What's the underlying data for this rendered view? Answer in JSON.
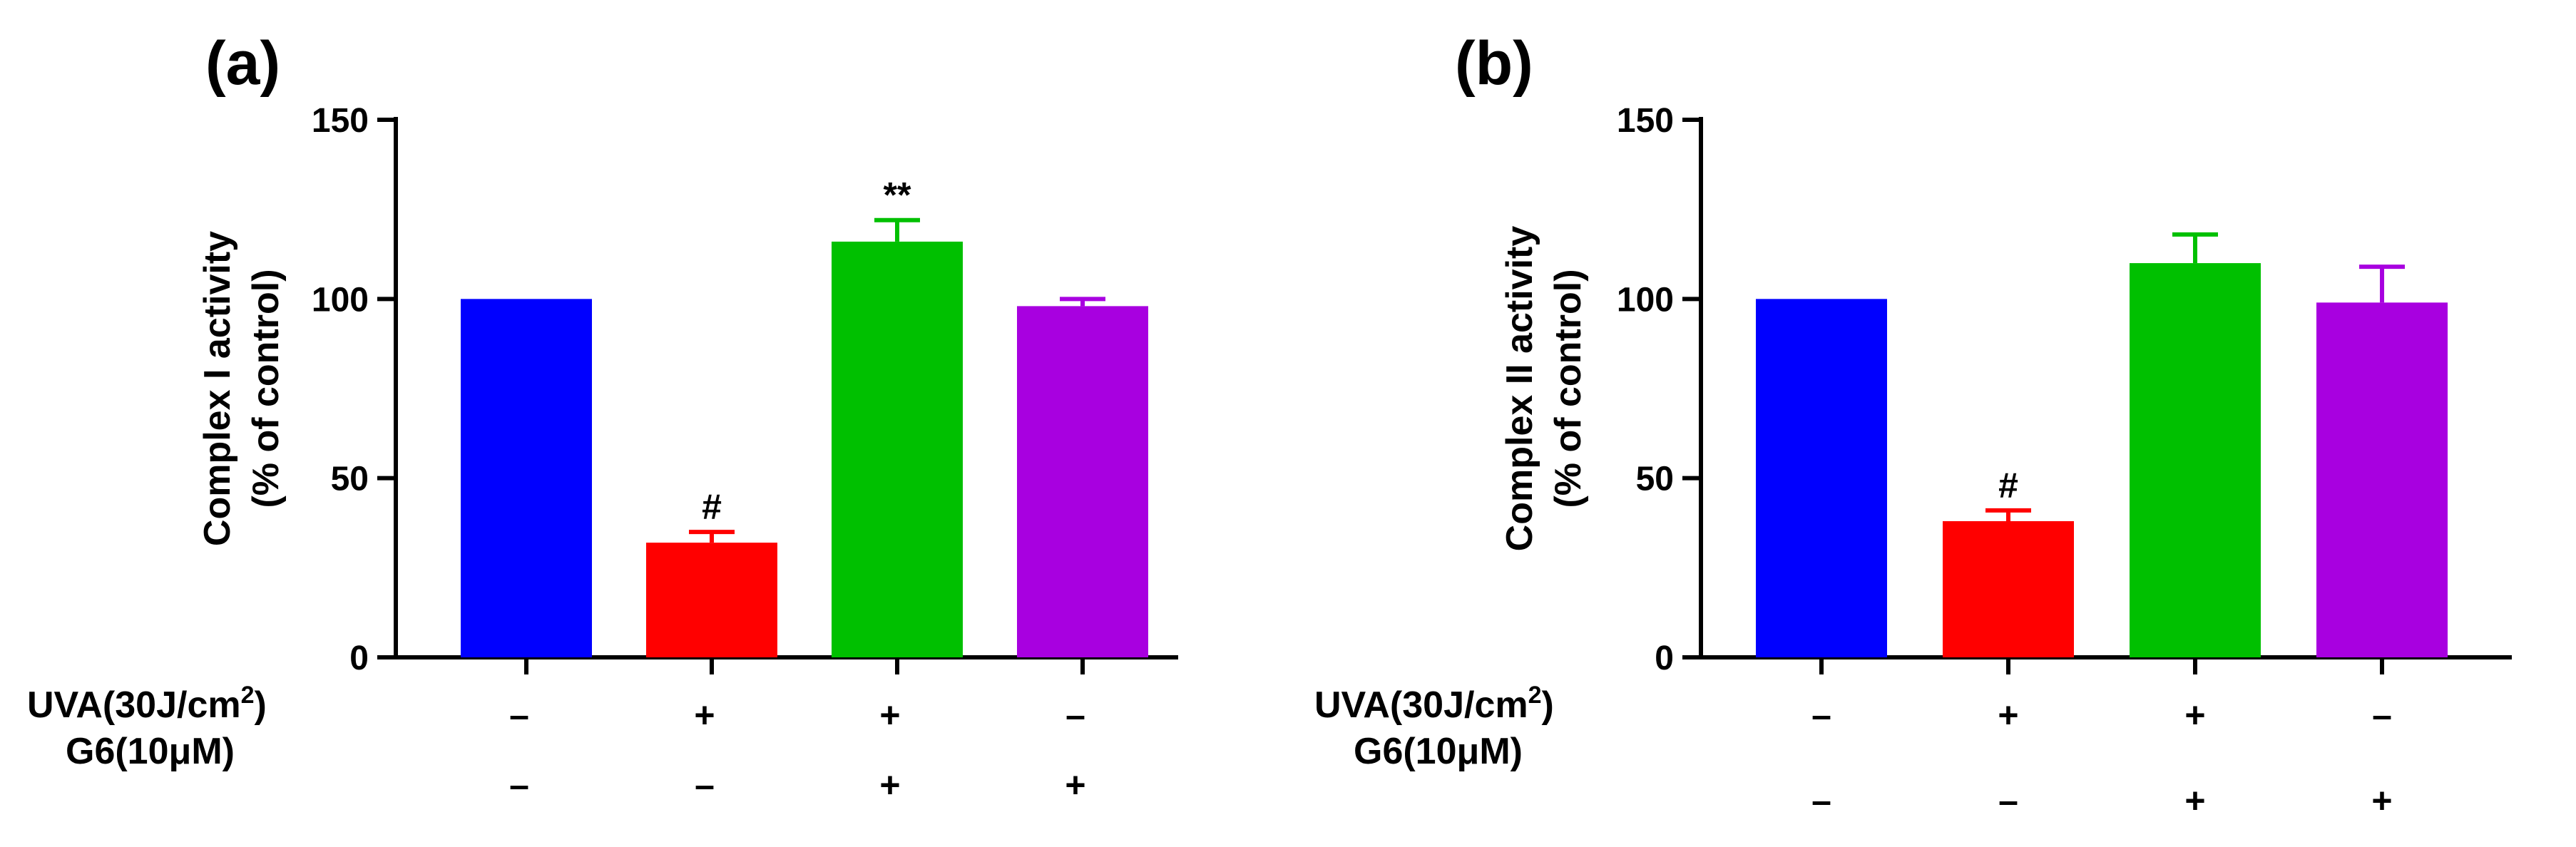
{
  "chart_data": [
    {
      "panel_label": "(a)",
      "type": "bar",
      "ylabel_line1": "Complex I activity",
      "ylabel_line2": "(% of control)",
      "ylim": [
        0,
        150
      ],
      "yticks": [
        "0",
        "50",
        "100",
        "150"
      ],
      "bars": [
        {
          "value": 100,
          "error": 0,
          "color": "#0000ff",
          "annotation": ""
        },
        {
          "value": 32,
          "error": 3,
          "color": "#ff0000",
          "annotation": "#"
        },
        {
          "value": 116,
          "error": 6,
          "color": "#00c000",
          "annotation": "**"
        },
        {
          "value": 98,
          "error": 2,
          "color": "#a800e0",
          "annotation": ""
        }
      ],
      "row1_label": "UVA(30J/cm",
      "row1_sup": "2",
      "row1_close": ")",
      "row1_signs": [
        "–",
        "+",
        "+",
        "–"
      ],
      "row2_label": "G6(10μM)",
      "row2_signs": [
        "–",
        "–",
        "+",
        "+"
      ]
    },
    {
      "panel_label": "(b)",
      "type": "bar",
      "ylabel_line1": "Complex II activity",
      "ylabel_line2": "(% of control)",
      "ylim": [
        0,
        150
      ],
      "yticks": [
        "0",
        "50",
        "100",
        "150"
      ],
      "bars": [
        {
          "value": 100,
          "error": 0,
          "color": "#0000ff",
          "annotation": ""
        },
        {
          "value": 38,
          "error": 3,
          "color": "#ff0000",
          "annotation": "#"
        },
        {
          "value": 110,
          "error": 8,
          "color": "#00c000",
          "annotation": ""
        },
        {
          "value": 99,
          "error": 10,
          "color": "#a800e0",
          "annotation": ""
        }
      ],
      "row1_label": "UVA(30J/cm",
      "row1_sup": "2",
      "row1_close": ")",
      "row1_signs": [
        "–",
        "+",
        "+",
        "–"
      ],
      "row2_label": "G6(10μM)",
      "row2_signs": [
        "–",
        "–",
        "+",
        "+"
      ]
    }
  ]
}
